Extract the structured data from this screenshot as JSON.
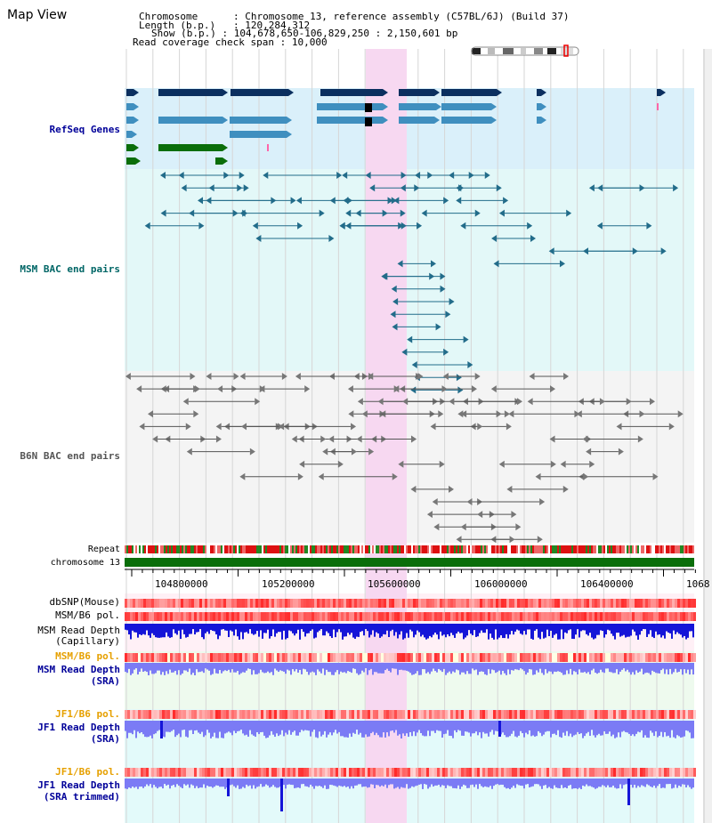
{
  "map_title": "Map View",
  "info": {
    "chromosome_label": "Chromosome",
    "chromosome_value": "Chromosome 13, reference assembly (C57BL/6J) (Build 37)",
    "length_label": "Length (b.p.)",
    "length_value": "120,284,312",
    "show_label": "Show (b.p.)",
    "show_value": "104,678,650-106,829,250 : 2,150,601 bp",
    "coverage_label": "Read coverage check span",
    "coverage_value": "10,000"
  },
  "tracks": {
    "refseq": "RefSeq Genes",
    "msm_bac": "MSM BAC end pairs",
    "b6n_bac": "B6N BAC end pairs",
    "repeat": "Repeat",
    "chromosome": "chromosome 13",
    "dbsnp": "dbSNP(Mouse)",
    "msm_b6_pol_1": "MSM/B6 pol.",
    "msm_read_depth_cap_1": "MSM Read Depth",
    "msm_read_depth_cap_2": "(Capillary)",
    "msm_b6_pol_2": "MSM/B6 pol.",
    "msm_read_depth_sra_1": "MSM Read Depth",
    "msm_read_depth_sra_2": "(SRA)",
    "jf1_b6_pol_1": "JF1/B6 pol.",
    "jf1_read_depth_sra_1": "JF1 Read Depth",
    "jf1_read_depth_sra_2": "(SRA)",
    "jf1_b6_pol_2": "JF1/B6 pol.",
    "jf1_read_depth_trim_1": "JF1 Read Depth",
    "jf1_read_depth_trim_2": "(SRA trimmed)"
  },
  "axis": {
    "ticks": [
      "104800000",
      "105200000",
      "105600000",
      "106000000",
      "106400000",
      "1068"
    ]
  },
  "colors": {
    "refseq_dark": "#0b2f5f",
    "refseq_mid": "#3f8fbf",
    "refseq_green": "#0a6e0a",
    "msm_pair": "#226c8a",
    "b6n_pair": "#555555",
    "chromosome_bar": "#0a6e0a",
    "highlight": "#f7d8f1",
    "label_blue": "#000099",
    "label_teal": "#006666",
    "label_orange": "#e6a000",
    "depth_blue": "#1515d8",
    "depth_light": "#7b7bf5"
  },
  "highlight_region": {
    "start": 105670000,
    "end": 105800000
  }
}
